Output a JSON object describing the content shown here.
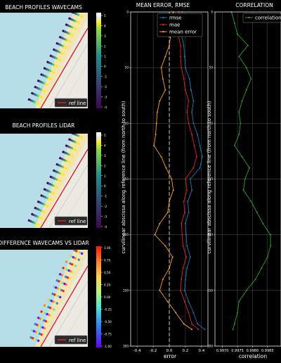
{
  "chart_data": [
    {
      "type": "map",
      "title": "BEACH PROFILES WAVECAMS",
      "legend": [
        "ref line"
      ],
      "colorbar": {
        "ticks": [
          "5",
          "4",
          "3",
          "2",
          "1",
          "0",
          "-1",
          "-2",
          "-3",
          "-4"
        ],
        "colormap": "viridis"
      }
    },
    {
      "type": "map",
      "title": "BEACH PROFILES LIDAR",
      "legend": [
        "ref line"
      ],
      "colorbar": {
        "ticks": [
          "5",
          "4",
          "3",
          "2",
          "1",
          "0",
          "-1",
          "-2",
          "-3",
          "-4"
        ],
        "colormap": "viridis"
      }
    },
    {
      "type": "map",
      "title": "DIFFERENCE WAVECAMS VS LIDAR",
      "legend": [
        "ref line"
      ],
      "colorbar": {
        "ticks": [
          "1.00",
          "0.75",
          "0.50",
          "0.25",
          "0.00",
          "-0.25",
          "-0.50",
          "-0.75",
          "-1.00"
        ],
        "colormap": "rainbow"
      }
    },
    {
      "type": "line",
      "title": "MEAN ERROR, RMSE",
      "xlabel": "error",
      "ylabel": "curvilinear abscissa along reference line (from north to south)",
      "xticks": [
        "-0.4",
        "-0.2",
        "0.0",
        "0.2",
        "0.4"
      ],
      "yticks": [
        "0",
        "50",
        "100",
        "150",
        "200",
        "250",
        "300"
      ],
      "xlim": [
        -0.48,
        0.48
      ],
      "ylim": [
        0,
        300
      ],
      "y_inverted": true,
      "grid": true,
      "legend_position": "top-right",
      "y": [
        0,
        10,
        20,
        30,
        40,
        50,
        60,
        70,
        80,
        90,
        100,
        110,
        120,
        130,
        140,
        150,
        160,
        170,
        180,
        190,
        200,
        210,
        220,
        230,
        240,
        250,
        260,
        270,
        280,
        285
      ],
      "series": [
        {
          "name": "rmse",
          "color": "#1f77b4",
          "values": [
            0.16,
            0.17,
            0.15,
            0.18,
            0.19,
            0.2,
            0.25,
            0.27,
            0.3,
            0.28,
            0.3,
            0.35,
            0.38,
            0.41,
            0.38,
            0.26,
            0.28,
            0.23,
            0.24,
            0.2,
            0.21,
            0.22,
            0.26,
            0.22,
            0.2,
            0.19,
            0.24,
            0.3,
            0.35,
            0.44
          ]
        },
        {
          "name": "mae",
          "color": "#d62728",
          "values": [
            0.12,
            0.13,
            0.11,
            0.14,
            0.14,
            0.15,
            0.18,
            0.2,
            0.24,
            0.22,
            0.24,
            0.28,
            0.31,
            0.34,
            0.3,
            0.2,
            0.22,
            0.18,
            0.19,
            0.15,
            0.16,
            0.17,
            0.21,
            0.17,
            0.15,
            0.14,
            0.19,
            0.24,
            0.28,
            0.36
          ]
        },
        {
          "name": "mean error",
          "color": "#ff9f1c",
          "values": [
            0.05,
            0.04,
            0.02,
            0.0,
            -0.05,
            -0.1,
            -0.08,
            -0.05,
            -0.12,
            -0.15,
            -0.16,
            -0.17,
            -0.19,
            -0.1,
            -0.04,
            0.03,
            0.05,
            0.0,
            -0.02,
            -0.12,
            -0.18,
            -0.05,
            0.04,
            0.0,
            -0.08,
            -0.12,
            -0.02,
            0.08,
            0.18,
            0.28
          ]
        }
      ]
    },
    {
      "type": "line",
      "title": "CORRELATION",
      "xlabel": "correlation",
      "ylabel": "curvilinear abscissa along reference line (from north to south)",
      "xticks": [
        "0.9970",
        "0.9975",
        "0.9980",
        "0.9985"
      ],
      "yticks": [
        "0",
        "50",
        "100",
        "150",
        "200",
        "250",
        "300"
      ],
      "xlim": [
        0.99675,
        0.99895
      ],
      "ylim": [
        0,
        300
      ],
      "y_inverted": true,
      "grid": true,
      "legend_position": "top-right",
      "y": [
        0,
        10,
        20,
        30,
        40,
        50,
        60,
        70,
        80,
        90,
        100,
        110,
        120,
        130,
        140,
        150,
        160,
        170,
        180,
        190,
        200,
        210,
        220,
        230,
        240,
        250,
        260,
        270,
        280,
        285
      ],
      "series": [
        {
          "name": "correlation",
          "color": "#2ca02c",
          "values": [
            0.9973,
            0.9974,
            0.9975,
            0.99785,
            0.99755,
            0.9978,
            0.99795,
            0.9978,
            0.99765,
            0.99755,
            0.9976,
            0.99755,
            0.9974,
            0.99765,
            0.9979,
            0.99775,
            0.9977,
            0.99795,
            0.99815,
            0.99835,
            0.9986,
            0.9986,
            0.9985,
            0.9983,
            0.9981,
            0.9978,
            0.99755,
            0.9975,
            0.9974,
            0.99735
          ]
        }
      ]
    }
  ]
}
